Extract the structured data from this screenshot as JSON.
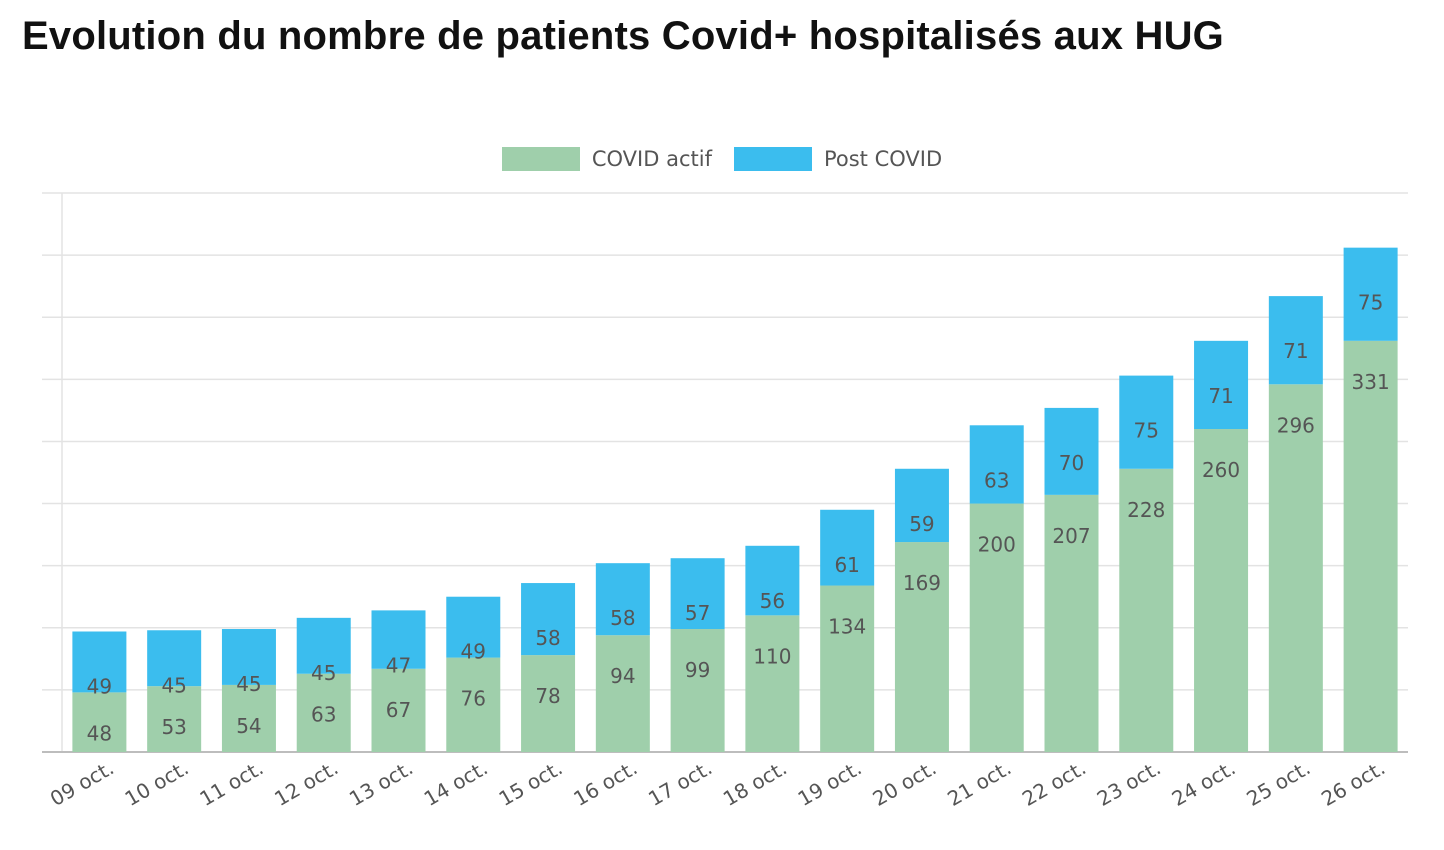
{
  "chart_data": {
    "type": "bar",
    "stacked": true,
    "title": "Evolution du nombre de patients Covid+ hospitalisés aux HUG",
    "categories": [
      "09 oct.",
      "10 oct.",
      "11 oct.",
      "12 oct.",
      "13 oct.",
      "14 oct.",
      "15 oct.",
      "16 oct.",
      "17 oct.",
      "18 oct.",
      "19 oct.",
      "20 oct.",
      "21 oct.",
      "22 oct.",
      "23 oct.",
      "24 oct.",
      "25 oct.",
      "26 oct."
    ],
    "series": [
      {
        "name": "COVID actif",
        "color": "#9fcfab",
        "values": [
          48,
          53,
          54,
          63,
          67,
          76,
          78,
          94,
          99,
          110,
          134,
          169,
          200,
          207,
          228,
          260,
          296,
          331
        ]
      },
      {
        "name": "Post COVID",
        "color": "#3bbdee",
        "values": [
          49,
          45,
          45,
          45,
          47,
          49,
          58,
          58,
          57,
          56,
          61,
          59,
          63,
          70,
          75,
          71,
          71,
          75
        ]
      }
    ],
    "ylim": [
      0,
      450
    ],
    "grid": true,
    "legend_position": "top-center",
    "xlabel": "",
    "ylabel": ""
  }
}
